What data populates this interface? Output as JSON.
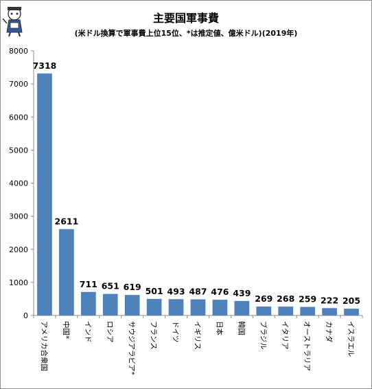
{
  "chart_data": {
    "type": "bar",
    "title": "主要国軍事費",
    "subtitle": "(米ドル換算で軍事費上位15位、*は推定値、億米ドル)(2019年)",
    "categories": [
      "アメリカ合衆国",
      "中国*",
      "インド",
      "ロシア",
      "サウジアラビア*",
      "フランス",
      "ドイツ",
      "イギリス",
      "日本",
      "韓国",
      "ブラジル",
      "イタリア",
      "オーストラリア",
      "カナダ",
      "イスラエル"
    ],
    "values": [
      7318,
      2611,
      711,
      651,
      619,
      501,
      493,
      487,
      476,
      439,
      269,
      268,
      259,
      222,
      205
    ],
    "ylim": [
      0,
      8000
    ],
    "yticks": [
      0,
      1000,
      2000,
      3000,
      4000,
      5000,
      6000,
      7000,
      8000
    ],
    "grid": false,
    "legend": "none",
    "bar_color": "#4f81bd"
  }
}
